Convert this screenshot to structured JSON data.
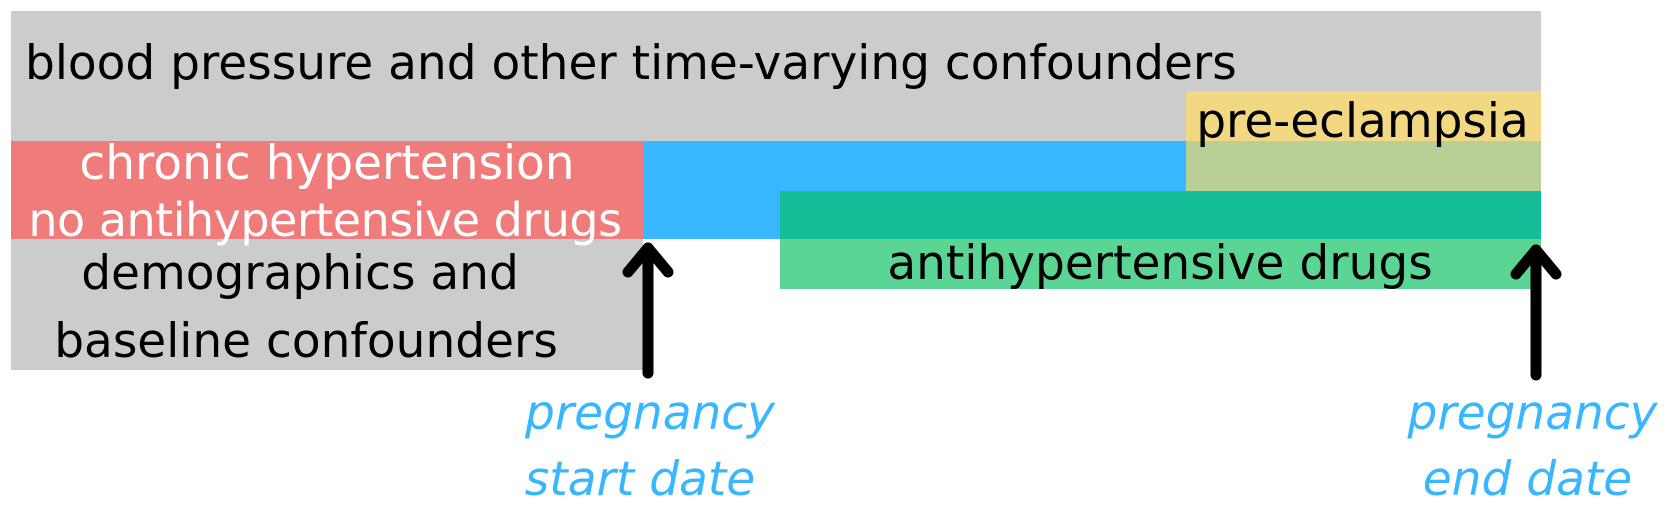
{
  "colors": {
    "time_varying": "#cccccc",
    "baseline": "#cccccc",
    "pre_eclampsia": "#f2d883",
    "overlap": "#bacf95",
    "chronic_hypertension": "#f07b7b",
    "exposure_window": "#38b6ff",
    "antihypertensive_dark": "#15bd98",
    "antihypertensive": "#5bd594",
    "arrow": "#000000",
    "date_text": "#38b6ff"
  },
  "labels": {
    "time_varying": "blood pressure and other time-varying confounders",
    "pre_eclampsia": "pre-eclampsia",
    "chronic_line1": "chronic hypertension",
    "chronic_line2": "no antihypertensive drugs",
    "baseline_line1": "demographics and",
    "baseline_line2": "baseline confounders",
    "antihypertensive": "antihypertensive drugs",
    "start_line1": "pregnancy",
    "start_line2": "start date",
    "end_line1": "pregnancy",
    "end_line2": "end date"
  },
  "icons": {
    "start_arrow": "up-arrow-icon",
    "end_arrow": "up-arrow-icon"
  }
}
